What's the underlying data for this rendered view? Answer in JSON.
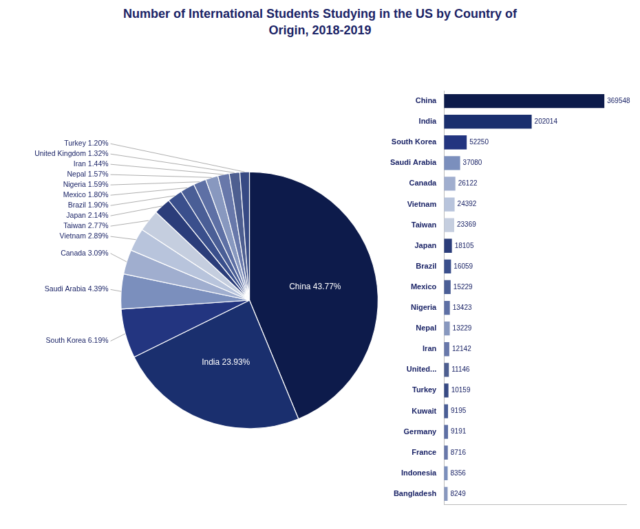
{
  "chart_data": [
    {
      "type": "pie",
      "title": "Number of International Students Studying in the US by Country of\nOrigin, 2018-2019",
      "categories": [
        "China",
        "India",
        "South Korea",
        "Saudi Arabia",
        "Canada",
        "Vietnam",
        "Taiwan",
        "Japan",
        "Brazil",
        "Mexico",
        "Nigeria",
        "Nepal",
        "Iran",
        "United Kingdom",
        "Turkey"
      ],
      "values": [
        43.77,
        23.93,
        6.19,
        4.39,
        3.09,
        2.89,
        2.77,
        2.14,
        1.9,
        1.8,
        1.59,
        1.57,
        1.44,
        1.32,
        1.2
      ],
      "colors": [
        "#0d1b4b",
        "#1a2f6e",
        "#233580",
        "#7b8fbd",
        "#a0aecf",
        "#b8c4dc",
        "#c5cedf",
        "#2b3d7a",
        "#3a4f8c",
        "#4a5e96",
        "#5e70a5",
        "#8898bf",
        "#6878aa",
        "#4d5e90",
        "#374a84"
      ],
      "data_labels": true,
      "value_labels": [
        "China 43.77%",
        "India 23.93%",
        "South Korea 6.19%",
        "Saudi Arabia 4.39%",
        "Canada 3.09%",
        "Vietnam 2.89%",
        "Taiwan 2.77%",
        "Japan 2.14%",
        "Brazil 1.90%",
        "Mexico 1.80%",
        "Nigeria 1.59%",
        "Nepal 1.57%",
        "Iran 1.44%",
        "United Kingdom 1.32%",
        "Turkey 1.20%"
      ]
    },
    {
      "type": "bar",
      "orientation": "horizontal",
      "categories": [
        "China",
        "India",
        "South Korea",
        "Saudi Arabia",
        "Canada",
        "Vietnam",
        "Taiwan",
        "Japan",
        "Brazil",
        "Mexico",
        "Nigeria",
        "Nepal",
        "Iran",
        "United...",
        "Turkey",
        "Kuwait",
        "Germany",
        "France",
        "Indonesia",
        "Bangladesh"
      ],
      "values": [
        369548,
        202014,
        52250,
        37080,
        26122,
        24392,
        23369,
        18105,
        16059,
        15229,
        13423,
        13229,
        12142,
        11146,
        10159,
        9195,
        9191,
        8716,
        8356,
        8249
      ],
      "colors": [
        "#0d1b4b",
        "#1a2f6e",
        "#233580",
        "#7b8fbd",
        "#a0aecf",
        "#b8c4dc",
        "#c5cedf",
        "#2b3d7a",
        "#3a4f8c",
        "#4a5e96",
        "#5e70a5",
        "#8898bf",
        "#6878aa",
        "#4d5e90",
        "#374a84",
        "#4a5e96",
        "#5e70a5",
        "#6878aa",
        "#7b8fbd",
        "#8898bf"
      ],
      "xlim": [
        0,
        420000
      ],
      "data_labels": true,
      "tick_labels": "y",
      "grid": false
    }
  ]
}
